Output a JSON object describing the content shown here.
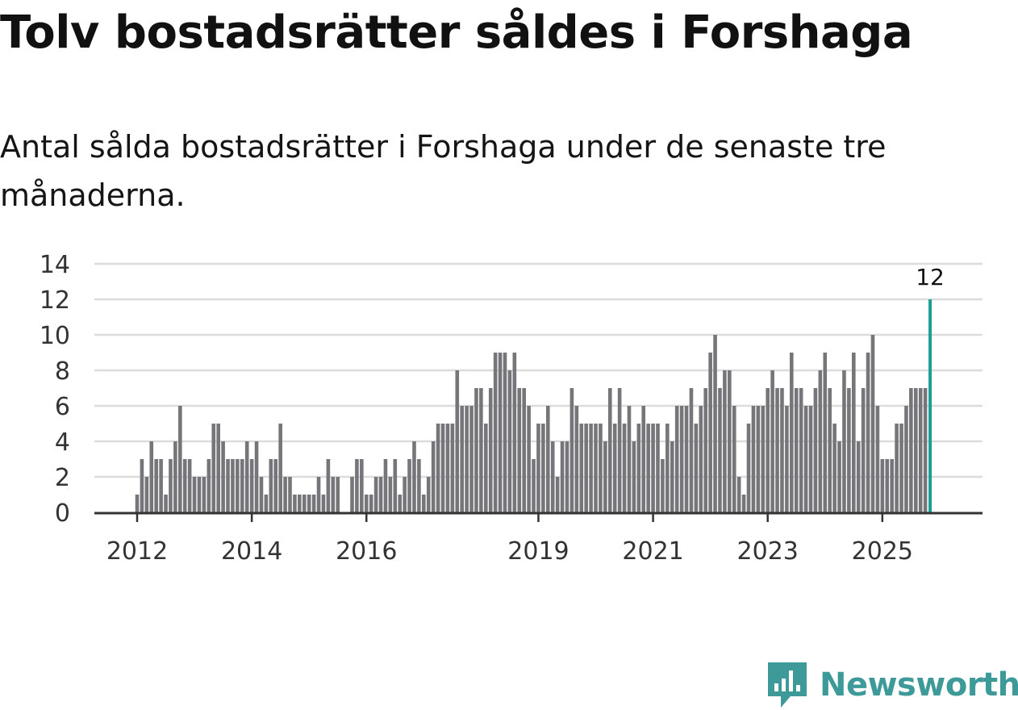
{
  "header": {
    "title": "Tolv bostadsrätter såldes i Forshaga",
    "subtitle": "Antal sålda bostadsrätter i Forshaga under de senaste tre månaderna."
  },
  "brand": {
    "name": "Newsworthy",
    "icon": "newsworthy-logo-icon",
    "color": "#3d9a98"
  },
  "chart_data": {
    "type": "bar",
    "title": "Tolv bostadsrätter såldes i Forshaga",
    "xlabel": "",
    "ylabel": "",
    "ylim": [
      0,
      14
    ],
    "y_ticks": [
      "0",
      "2",
      "4",
      "6",
      "8",
      "10",
      "12",
      "14"
    ],
    "x_ticks": [
      {
        "label": "2012",
        "index": 0
      },
      {
        "label": "2014",
        "index": 24
      },
      {
        "label": "2016",
        "index": 48
      },
      {
        "label": "2019",
        "index": 84
      },
      {
        "label": "2021",
        "index": 108
      },
      {
        "label": "2023",
        "index": 132
      },
      {
        "label": "2025",
        "index": 156
      }
    ],
    "grid": true,
    "bar_color": "#76767a",
    "highlight_color": "#1a9e96",
    "highlight_label": "12",
    "values": [
      1,
      3,
      2,
      4,
      3,
      3,
      1,
      3,
      4,
      6,
      3,
      3,
      2,
      2,
      2,
      3,
      5,
      5,
      4,
      3,
      3,
      3,
      3,
      4,
      3,
      4,
      2,
      1,
      3,
      3,
      5,
      2,
      2,
      1,
      1,
      1,
      1,
      1,
      2,
      1,
      3,
      2,
      2,
      0,
      0,
      2,
      3,
      3,
      1,
      1,
      2,
      2,
      3,
      2,
      3,
      1,
      2,
      3,
      4,
      3,
      1,
      2,
      4,
      5,
      5,
      5,
      5,
      8,
      6,
      6,
      6,
      7,
      7,
      5,
      7,
      9,
      9,
      9,
      8,
      9,
      7,
      7,
      6,
      3,
      5,
      5,
      6,
      4,
      2,
      4,
      4,
      7,
      6,
      5,
      5,
      5,
      5,
      5,
      4,
      7,
      5,
      7,
      5,
      6,
      4,
      5,
      6,
      5,
      5,
      5,
      3,
      5,
      4,
      6,
      6,
      6,
      7,
      5,
      6,
      7,
      9,
      10,
      7,
      8,
      8,
      6,
      2,
      1,
      5,
      6,
      6,
      6,
      7,
      8,
      7,
      7,
      6,
      9,
      7,
      7,
      6,
      6,
      7,
      8,
      9,
      7,
      5,
      4,
      8,
      7,
      9,
      4,
      7,
      9,
      10,
      6,
      3,
      3,
      3,
      5,
      5,
      6,
      7,
      7,
      7,
      7,
      12
    ]
  }
}
